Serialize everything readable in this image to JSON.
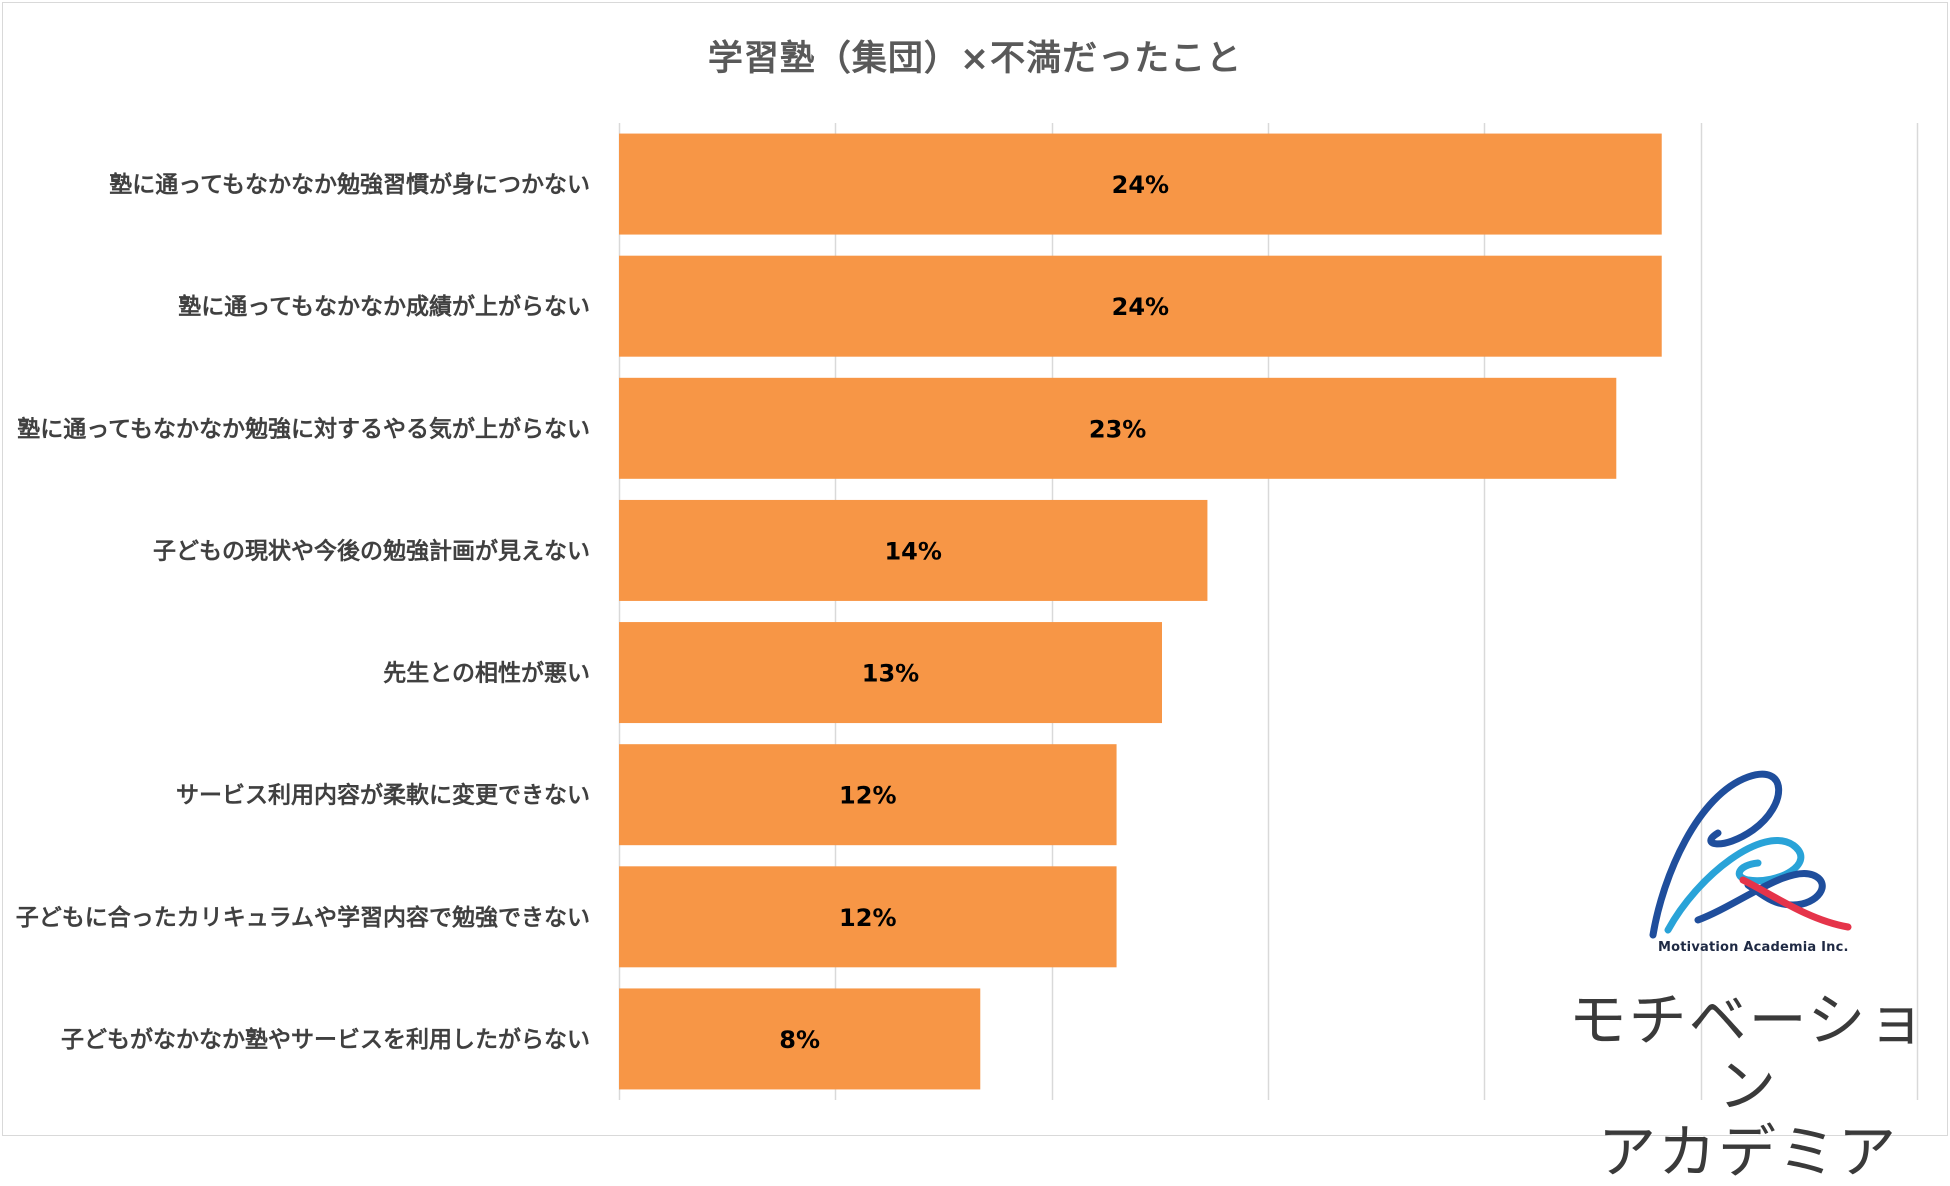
{
  "chart_data": {
    "type": "bar",
    "orientation": "horizontal",
    "title": "学習塾（集団）×不満だったこと",
    "categories": [
      "塾に通ってもなかなか勉強習慣が身につかない",
      "塾に通ってもなかなか成績が上がらない",
      "塾に通ってもなかなか勉強に対するやる気が上がらない",
      "子どもの現状や今後の勉強計画が見えない",
      "先生との相性が悪い",
      "サービス利用内容が柔軟に変更できない",
      "子どもに合ったカリキュラムや学習内容で勉強できない",
      "子どもがなかなか塾やサービスを利用したがらない"
    ],
    "values": [
      24,
      24,
      23,
      14,
      13,
      12,
      12,
      8
    ],
    "value_labels": [
      "24%",
      "24%",
      "23%",
      "14%",
      "13%",
      "12%",
      "12%",
      "8%"
    ],
    "exact_values": [
      24.1,
      24.1,
      23.05,
      13.6,
      12.55,
      11.5,
      11.5,
      8.35
    ],
    "unit": "%",
    "xlim": [
      0,
      30
    ],
    "gridlines": [
      0,
      5,
      10,
      15,
      20,
      25,
      30
    ],
    "grid": true,
    "legend": "none",
    "bar_color": "#f79646",
    "grid_color": "#d9d9d9"
  },
  "logo": {
    "company": "Motivation Academia Inc.",
    "name_line1": "モチベーション",
    "name_line2": "アカデミア",
    "colors": [
      "#1f4e9c",
      "#29a3d8",
      "#e5344a"
    ]
  }
}
